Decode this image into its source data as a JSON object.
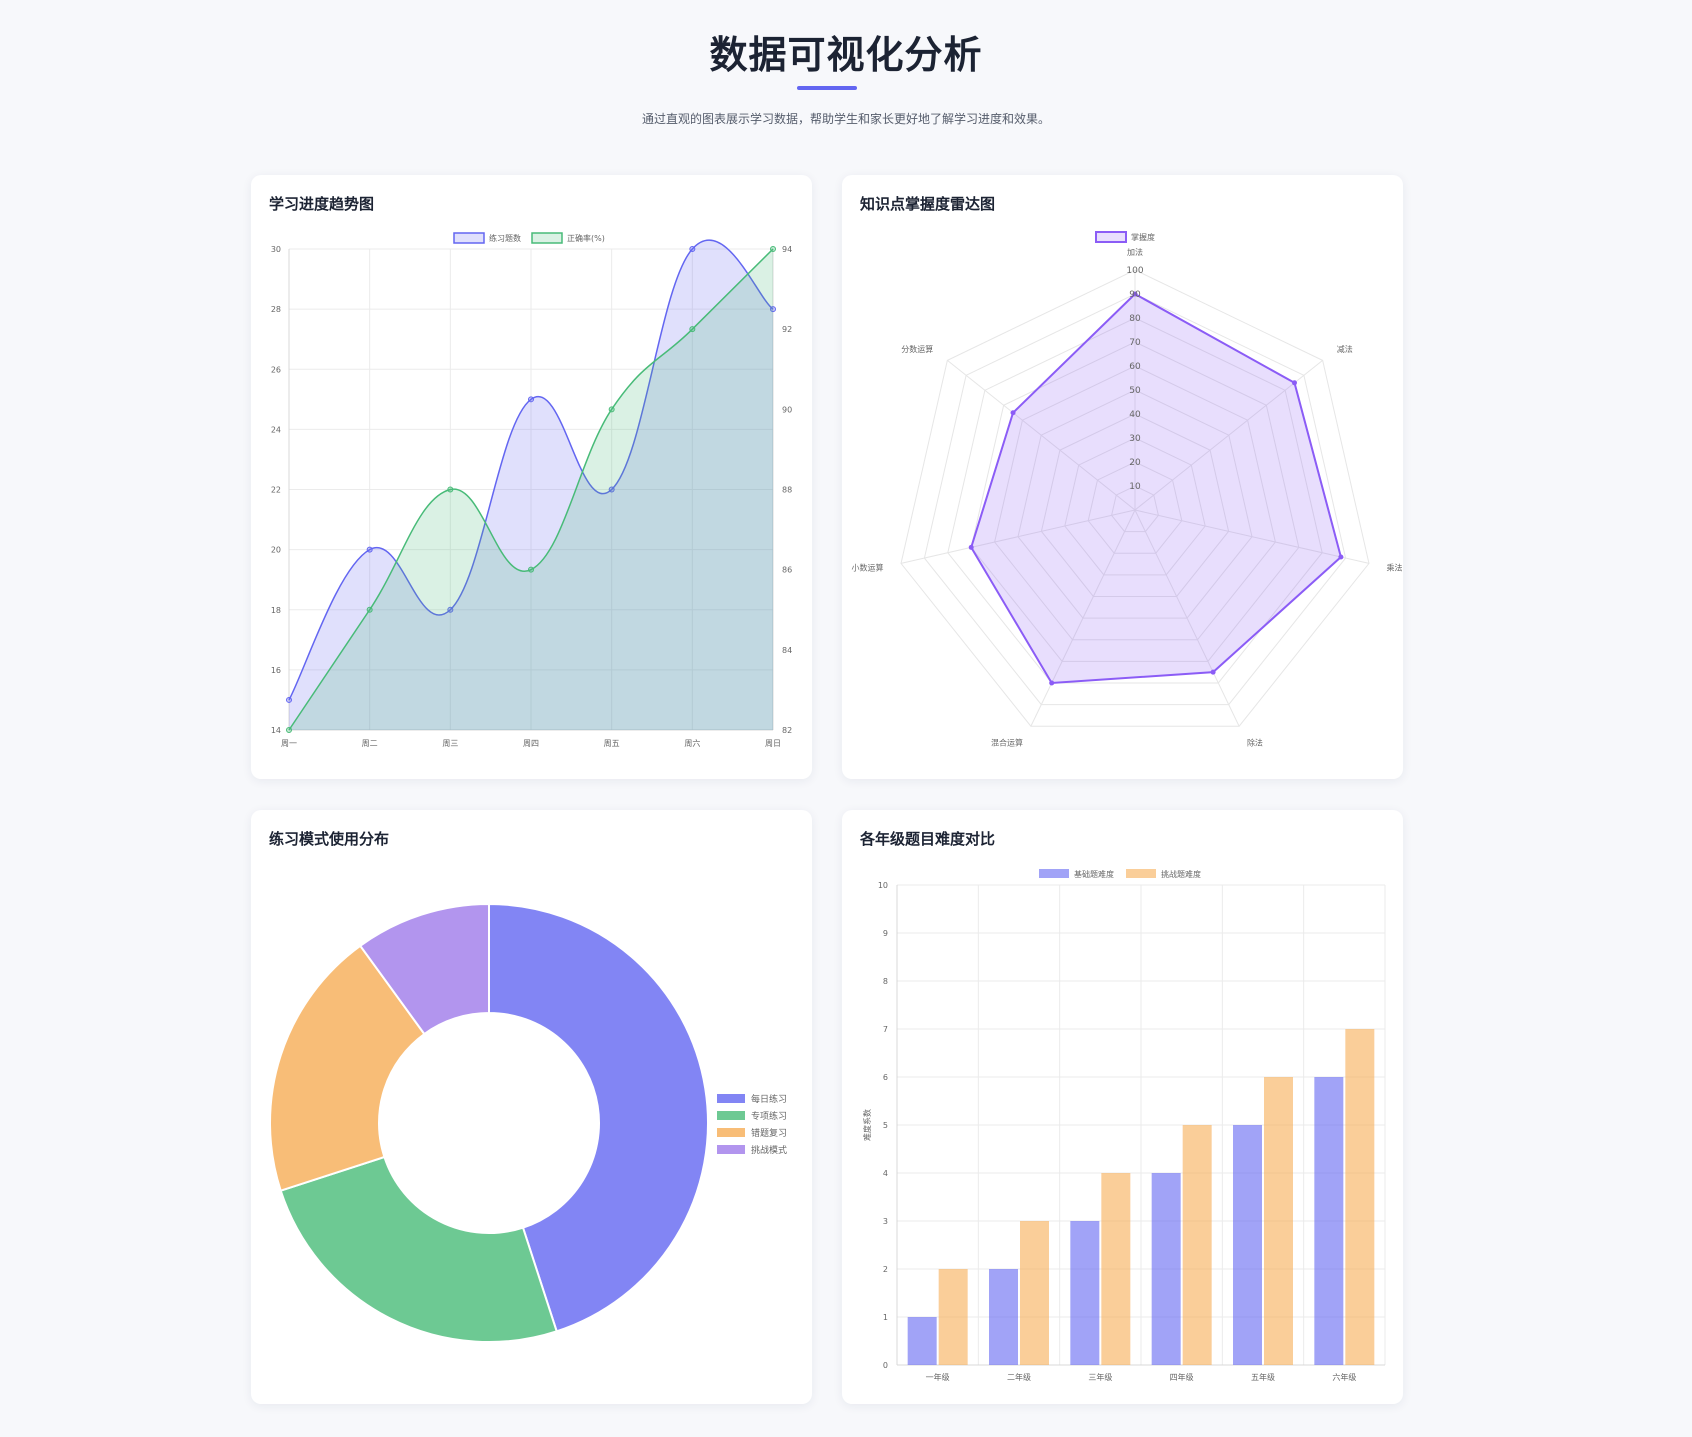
{
  "header": {
    "title": "数据可视化分析",
    "subtitle": "通过直观的图表展示学习数据，帮助学生和家长更好地了解学习进度和效果。"
  },
  "colors": {
    "accent": "#6366f1",
    "blue": "#6366f1",
    "green": "#48bb78",
    "orange": "#f6ad55",
    "purple": "#9f7aea",
    "radar": "#8b5cf6"
  },
  "cards": {
    "trend": {
      "title": "学习进度趋势图"
    },
    "radar": {
      "title": "知识点掌握度雷达图"
    },
    "doughnut": {
      "title": "练习模式使用分布"
    },
    "bar": {
      "title": "各年级题目难度对比"
    }
  },
  "chart_data": [
    {
      "type": "line",
      "title": "学习进度趋势图",
      "categories": [
        "周一",
        "周二",
        "周三",
        "周四",
        "周五",
        "周六",
        "周日"
      ],
      "series": [
        {
          "name": "练习题数",
          "axis": "left",
          "values": [
            15,
            20,
            18,
            25,
            22,
            30,
            28
          ]
        },
        {
          "name": "正确率(%)",
          "axis": "right",
          "values": [
            82,
            85,
            88,
            86,
            90,
            92,
            94
          ]
        }
      ],
      "y_left": {
        "range": [
          14,
          30
        ],
        "ticks": [
          "14",
          "16",
          "18",
          "20",
          "22",
          "24",
          "26",
          "28",
          "30"
        ]
      },
      "y_right": {
        "range": [
          82,
          94
        ],
        "ticks": [
          "82",
          "84",
          "86",
          "88",
          "90",
          "92",
          "94"
        ]
      },
      "fill": true,
      "smooth": true,
      "grid": true,
      "legend": "top"
    },
    {
      "type": "radar",
      "title": "知识点掌握度雷达图",
      "categories": [
        "加法",
        "减法",
        "乘法",
        "除法",
        "混合运算",
        "小数运算",
        "分数运算"
      ],
      "series": [
        {
          "name": "掌握度",
          "values": [
            90,
            85,
            88,
            75,
            80,
            70,
            65
          ]
        }
      ],
      "range": [
        0,
        100
      ],
      "ticks": [
        "10",
        "20",
        "30",
        "40",
        "50",
        "60",
        "70",
        "80",
        "90",
        "100"
      ],
      "legend": "top"
    },
    {
      "type": "pie",
      "title": "练习模式使用分布",
      "categories": [
        "每日练习",
        "专项练习",
        "错题复习",
        "挑战模式"
      ],
      "values": [
        45,
        25,
        20,
        10
      ],
      "donut": true,
      "legend": "right"
    },
    {
      "type": "bar",
      "title": "各年级题目难度对比",
      "categories": [
        "一年级",
        "二年级",
        "三年级",
        "四年级",
        "五年级",
        "六年级"
      ],
      "series": [
        {
          "name": "基础题难度",
          "values": [
            1,
            2,
            3,
            4,
            5,
            6
          ]
        },
        {
          "name": "挑战题难度",
          "values": [
            2,
            3,
            4,
            5,
            6,
            7
          ]
        }
      ],
      "ylabel": "难度系数",
      "ylim": [
        0,
        10
      ],
      "yticks": [
        "0",
        "1",
        "2",
        "3",
        "4",
        "5",
        "6",
        "7",
        "8",
        "9",
        "10"
      ],
      "grid": true,
      "legend": "top"
    }
  ]
}
